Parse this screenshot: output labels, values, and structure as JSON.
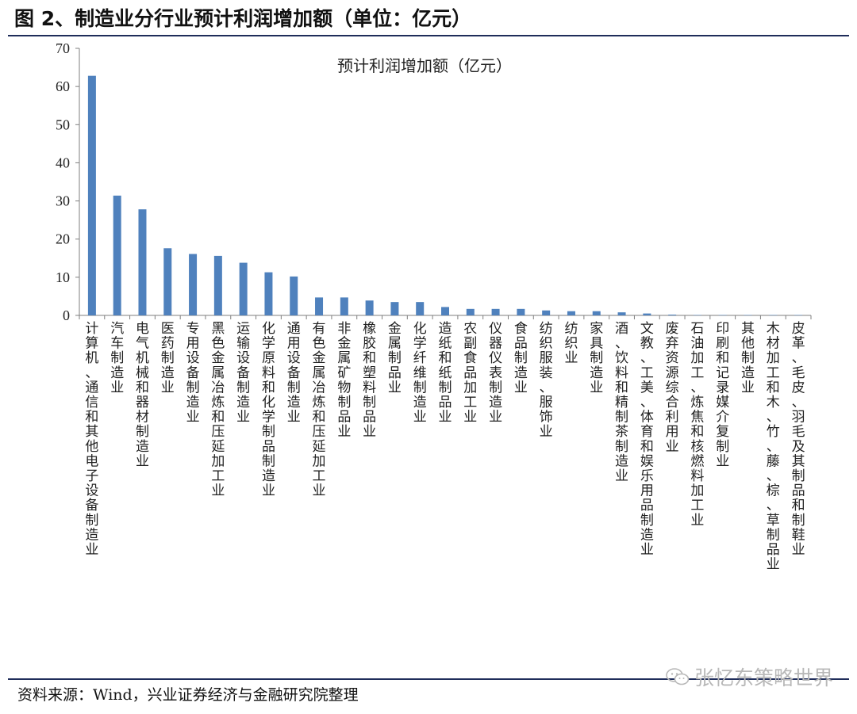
{
  "figure": {
    "title": "图 2、制造业分行业预计利润增加额（单位：亿元）",
    "source": "资料来源：Wind，兴业证券经济与金融研究院整理",
    "watermark": "张忆东策略世界"
  },
  "colors": {
    "bar": "#4f81bd",
    "axis": "#7f7f7f",
    "rule": "#1f2d5a"
  },
  "chart_data": {
    "type": "bar",
    "title": "预计利润增加额（亿元）",
    "xlabel": "",
    "ylabel": "",
    "ylim": [
      0,
      70
    ],
    "yticks": [
      0,
      10,
      20,
      30,
      40,
      50,
      60,
      70
    ],
    "grid": false,
    "categories": [
      "计算机、通信和其他电子设备制造业",
      "汽车制造业",
      "电气机械和器材制造业",
      "医药制造业",
      "专用设备制造业",
      "黑色金属冶炼和压延加工业",
      "运输设备制造业",
      "化学原料和化学制品制造业",
      "通用设备制造业",
      "有色金属冶炼和压延加工业",
      "非金属矿物制品业",
      "橡胶和塑料制品业",
      "金属制品业",
      "化学纤维制造业",
      "造纸和纸制品业",
      "农副食品加工业",
      "仪器仪表制造业",
      "食品制造业",
      "纺织服装、服饰业",
      "纺织业",
      "家具制造业",
      "酒、饮料和精制茶制造业",
      "文教、工美、体育和娱乐用品制造业",
      "废弃资源综合利用业",
      "石油加工、炼焦和核燃料加工业",
      "印刷和记录媒介复制业",
      "其他制造业",
      "木材加工和木、竹、藤、棕、草制品业",
      "皮革、毛皮、羽毛及其制品和制鞋业"
    ],
    "values": [
      62.8,
      31.4,
      27.8,
      17.6,
      16.1,
      15.6,
      13.8,
      11.3,
      10.2,
      4.7,
      4.7,
      3.9,
      3.5,
      3.5,
      2.2,
      1.7,
      1.7,
      1.7,
      1.3,
      1.1,
      1.1,
      0.8,
      0.5,
      0.2,
      0.1,
      0.1,
      0.1,
      0.1,
      0.1
    ]
  }
}
